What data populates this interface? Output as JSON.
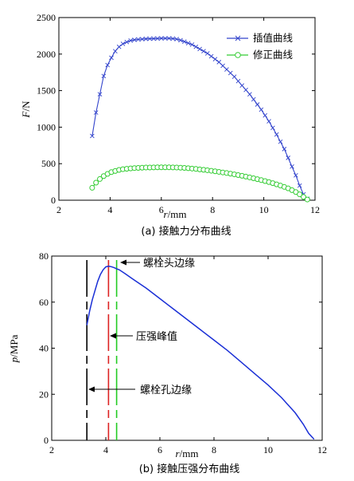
{
  "chart_data": [
    {
      "type": "line",
      "caption": "(a) 接触力分布曲线",
      "xlabel": "r/mm",
      "ylabel": "F/N",
      "xlim": [
        2,
        12
      ],
      "ylim": [
        0,
        2500
      ],
      "xticks": [
        "2",
        "4",
        "6",
        "8",
        "10",
        "12"
      ],
      "yticks": [
        "0",
        "500",
        "1000",
        "1500",
        "2000",
        "2500"
      ],
      "grid": false,
      "legend_position": "top-right",
      "series": [
        {
          "name": "插值曲线",
          "color": "#3344cc",
          "marker": "x",
          "x": [
            3.3,
            3.45,
            3.6,
            3.75,
            3.9,
            4.05,
            4.2,
            4.35,
            4.5,
            4.65,
            4.8,
            4.95,
            5.1,
            5.25,
            5.4,
            5.55,
            5.7,
            5.85,
            6.0,
            6.15,
            6.3,
            6.45,
            6.6,
            6.75,
            6.9,
            7.05,
            7.2,
            7.35,
            7.5,
            7.65,
            7.8,
            7.95,
            8.1,
            8.25,
            8.4,
            8.55,
            8.7,
            8.85,
            9.0,
            9.15,
            9.3,
            9.45,
            9.6,
            9.75,
            9.9,
            10.05,
            10.2,
            10.35,
            10.5,
            10.65,
            10.8,
            10.95,
            11.1,
            11.25,
            11.4,
            11.55,
            11.7
          ],
          "y": [
            880,
            1200,
            1450,
            1700,
            1850,
            1950,
            2040,
            2100,
            2140,
            2165,
            2185,
            2195,
            2200,
            2205,
            2208,
            2210,
            2212,
            2213,
            2215,
            2215,
            2215,
            2212,
            2205,
            2190,
            2170,
            2150,
            2130,
            2100,
            2070,
            2040,
            2010,
            1970,
            1930,
            1890,
            1840,
            1790,
            1740,
            1690,
            1630,
            1570,
            1510,
            1450,
            1380,
            1310,
            1240,
            1160,
            1080,
            990,
            900,
            800,
            700,
            580,
            460,
            340,
            200,
            80,
            20
          ]
        },
        {
          "name": "修正曲线",
          "color": "#33cc33",
          "marker": "o",
          "x": [
            3.3,
            3.45,
            3.6,
            3.75,
            3.9,
            4.05,
            4.2,
            4.35,
            4.5,
            4.65,
            4.8,
            4.95,
            5.1,
            5.25,
            5.4,
            5.55,
            5.7,
            5.85,
            6.0,
            6.15,
            6.3,
            6.45,
            6.6,
            6.75,
            6.9,
            7.05,
            7.2,
            7.35,
            7.5,
            7.65,
            7.8,
            7.95,
            8.1,
            8.25,
            8.4,
            8.55,
            8.7,
            8.85,
            9.0,
            9.15,
            9.3,
            9.45,
            9.6,
            9.75,
            9.9,
            10.05,
            10.2,
            10.35,
            10.5,
            10.65,
            10.8,
            10.95,
            11.1,
            11.25,
            11.4,
            11.55,
            11.7
          ],
          "y": [
            170,
            240,
            290,
            330,
            360,
            385,
            400,
            415,
            425,
            430,
            435,
            440,
            442,
            445,
            447,
            448,
            449,
            450,
            450,
            450,
            450,
            449,
            447,
            445,
            442,
            438,
            433,
            428,
            422,
            416,
            410,
            403,
            396,
            388,
            380,
            372,
            363,
            354,
            344,
            334,
            323,
            312,
            300,
            288,
            275,
            262,
            248,
            233,
            217,
            200,
            182,
            162,
            138,
            112,
            80,
            45,
            10
          ]
        }
      ]
    },
    {
      "type": "line",
      "caption": "(b) 接触压强分布曲线",
      "xlabel": "r/mm",
      "ylabel": "p/MPa",
      "xlim": [
        2,
        12
      ],
      "ylim": [
        0,
        80
      ],
      "xticks": [
        "2",
        "4",
        "6",
        "8",
        "10",
        "12"
      ],
      "yticks": [
        "0",
        "20",
        "40",
        "60",
        "80"
      ],
      "grid": false,
      "series": [
        {
          "name": "",
          "color": "#1a2fd6",
          "marker": "none",
          "x": [
            3.3,
            3.4,
            3.5,
            3.6,
            3.7,
            3.8,
            3.9,
            4.0,
            4.1,
            4.2,
            4.3,
            4.4,
            4.5,
            4.7,
            5.0,
            5.5,
            6.0,
            6.5,
            7.0,
            7.5,
            8.0,
            8.5,
            9.0,
            9.5,
            10.0,
            10.5,
            11.0,
            11.3,
            11.5,
            11.7
          ],
          "y": [
            50,
            56,
            61,
            65,
            69,
            72,
            74,
            75.3,
            75.6,
            75.4,
            75,
            74.5,
            74,
            72.5,
            70,
            66,
            61.5,
            57,
            52.5,
            48,
            43.5,
            39,
            34,
            29,
            24,
            18.5,
            12,
            7,
            3,
            0.5
          ]
        }
      ],
      "markers": [
        {
          "x": 3.3,
          "color": "#000000",
          "label": "螺栓孔边缘"
        },
        {
          "x": 4.1,
          "color": "#dd2222",
          "label": "压强峰值"
        },
        {
          "x": 4.4,
          "color": "#22cc22",
          "label": "螺栓头边缘"
        }
      ]
    }
  ]
}
